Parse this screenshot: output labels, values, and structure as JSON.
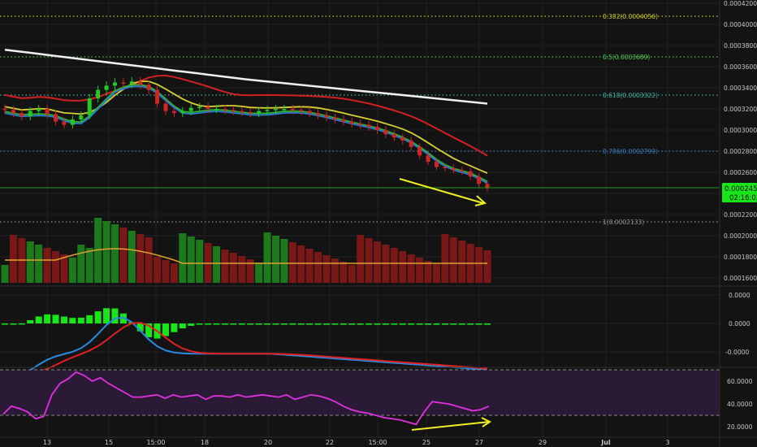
{
  "colors": {
    "background": "#131313",
    "rsi_band": "#2a1a36",
    "grid": "#222222",
    "axis_text": "#c8c8c8",
    "candle_up": "#26c826",
    "candle_down": "#d02626",
    "vol_up": "#1c7a1c",
    "vol_down": "#7a1818",
    "ma_long": "#f0f0f0",
    "ma_mid": "#d42020",
    "ma_fast_yellow": "#d8d030",
    "ma_fast_green": "#30b030",
    "ma_fast_blue": "#2a7ad8",
    "vol_ma": "#e0a030",
    "macd_line": "#2a8ae0",
    "signal_line": "#e02020",
    "hist_color": "#19e619",
    "rsi_line": "#e030e0",
    "divergence_arrow": "#f0f020",
    "price_tag": "#19e619"
  },
  "x_axis_labels": [
    "13",
    "15",
    "15:00",
    "18",
    "20",
    "22",
    "15:00",
    "25",
    "27",
    "29",
    "Jul",
    "3"
  ],
  "price_axis_labels": [
    "0.0004200",
    "0.0004000",
    "0.0003800",
    "0.0003600",
    "0.0003400",
    "0.0003200",
    "0.0003000",
    "0.0002800",
    "0.0002600",
    "0.0002400",
    "0.0002200",
    "0.0002000",
    "0.0001800",
    "0.0001600"
  ],
  "macd_axis_labels": [
    "0.0000",
    "0.0000",
    "-0.0000"
  ],
  "rsi_axis_labels": [
    "60.0000",
    "40.0000",
    "20.0000"
  ],
  "price_tag": {
    "price": "0.0002451",
    "countdown": "02:16:03"
  },
  "fib_levels": [
    {
      "label": "0.382(0.0004056)",
      "color": "#c8c820"
    },
    {
      "label": "0.5(0.0003689)",
      "color": "#50c850"
    },
    {
      "label": "0.618(0.0003322)",
      "color": "#40b0a0"
    },
    {
      "label": "0.786(0.0002799)",
      "color": "#3a7ac0"
    },
    {
      "label": "1(0.0002133)",
      "color": "#909090"
    }
  ],
  "chart_data": {
    "type": "candlestick",
    "x_range": [
      "12",
      "4"
    ],
    "price": [
      0.000319,
      0.000316,
      0.000313,
      0.000318,
      0.00032,
      0.000315,
      0.000308,
      0.000305,
      0.00031,
      0.000314,
      0.00033,
      0.000338,
      0.000342,
      0.000345,
      0.000344,
      0.000346,
      0.000343,
      0.000338,
      0.000325,
      0.000318,
      0.000316,
      0.000318,
      0.000321,
      0.000322,
      0.00032,
      0.00032,
      0.000319,
      0.000318,
      0.000317,
      0.000316,
      0.000318,
      0.000319,
      0.00032,
      0.00032,
      0.000319,
      0.000318,
      0.000316,
      0.000314,
      0.000312,
      0.00031,
      0.000308,
      0.000306,
      0.000305,
      0.000303,
      0.0003,
      0.000296,
      0.000293,
      0.00029,
      0.000284,
      0.000276,
      0.00027,
      0.000265,
      0.000264,
      0.000262,
      0.000261,
      0.000256,
      0.000249,
      0.000245
    ],
    "ma_white": [
      0.000376,
      0.000348,
      0.000325
    ],
    "volume_ma_note": "",
    "divergence": "price lower lows, RSI higher lows",
    "rsi": [
      31,
      38,
      36,
      33,
      27,
      29,
      48,
      58,
      62,
      68,
      65,
      60,
      63,
      58,
      54,
      50,
      46,
      46,
      47,
      48,
      45,
      48,
      46,
      47,
      48,
      44,
      47,
      47,
      46,
      48,
      46,
      47,
      48,
      47,
      46,
      48,
      44,
      46,
      48,
      47,
      45,
      42,
      38,
      35,
      33,
      32,
      30,
      28,
      27,
      26,
      24,
      22,
      33,
      42,
      41,
      40,
      38,
      36,
      34,
      35,
      38
    ],
    "rsi_levels": [
      70,
      30
    ]
  }
}
